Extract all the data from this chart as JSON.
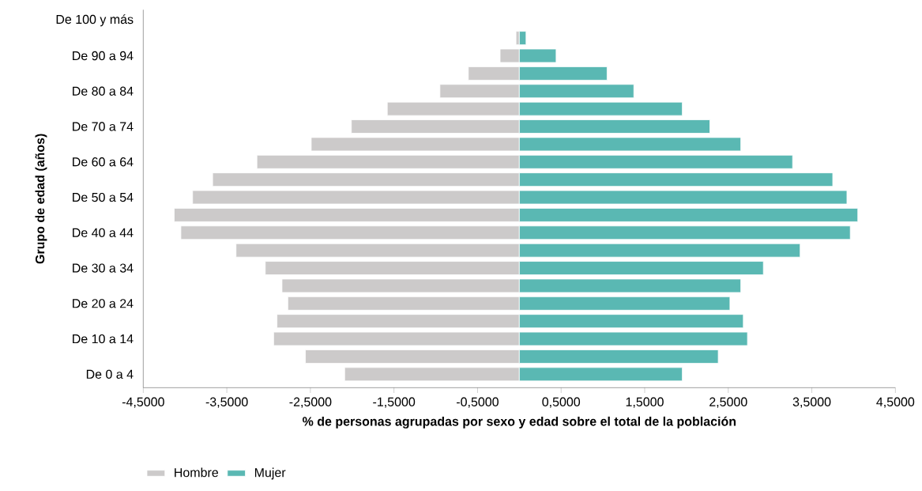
{
  "chart_data": {
    "type": "bar",
    "orientation": "horizontal",
    "xlabel": "% de personas agrupadas por sexo y edad sobre el total de la población",
    "ylabel": "Grupo de edad (años)",
    "categories": [
      "De 100 y más",
      null,
      "De 90 a 94",
      null,
      "De 80 a 84",
      null,
      "De 70 a 74",
      null,
      "De 60 a 64",
      null,
      "De 50 a 54",
      null,
      "De 40 a 44",
      null,
      "De 30 a 34",
      null,
      "De 20 a 24",
      null,
      "De 10 a 14",
      null,
      "De 0 a 4"
    ],
    "series": [
      {
        "name": "Hombre",
        "color": "#cccaca",
        "values": [
          null,
          -0.04,
          -0.23,
          -0.61,
          -0.95,
          -1.58,
          -2.01,
          -2.49,
          -3.14,
          -3.67,
          -3.91,
          -4.13,
          -4.05,
          -3.39,
          -3.04,
          -2.84,
          -2.77,
          -2.9,
          -2.94,
          -2.56,
          -2.09
        ]
      },
      {
        "name": "Mujer",
        "color": "#5ab8b3",
        "values": [
          null,
          0.08,
          0.44,
          1.05,
          1.37,
          1.95,
          2.28,
          2.65,
          3.27,
          3.75,
          3.92,
          4.05,
          3.96,
          3.36,
          2.92,
          2.65,
          2.52,
          2.68,
          2.73,
          2.38,
          1.95
        ]
      }
    ],
    "xlim": [
      -4.5,
      4.5
    ],
    "xticks": [
      {
        "value": -4.5,
        "label": "-4,5000"
      },
      {
        "value": -3.5,
        "label": "-3,5000"
      },
      {
        "value": -2.5,
        "label": "-2,5000"
      },
      {
        "value": -1.5,
        "label": "-1,5000"
      },
      {
        "value": -0.5,
        "label": "-0,5000"
      },
      {
        "value": 0.5,
        "label": "0,5000"
      },
      {
        "value": 1.5,
        "label": "1,5000"
      },
      {
        "value": 2.5,
        "label": "2,5000"
      },
      {
        "value": 3.5,
        "label": "3,5000"
      },
      {
        "value": 4.5,
        "label": "4,5000"
      }
    ],
    "grid": false,
    "stacked": true,
    "legend": "bottom left"
  }
}
